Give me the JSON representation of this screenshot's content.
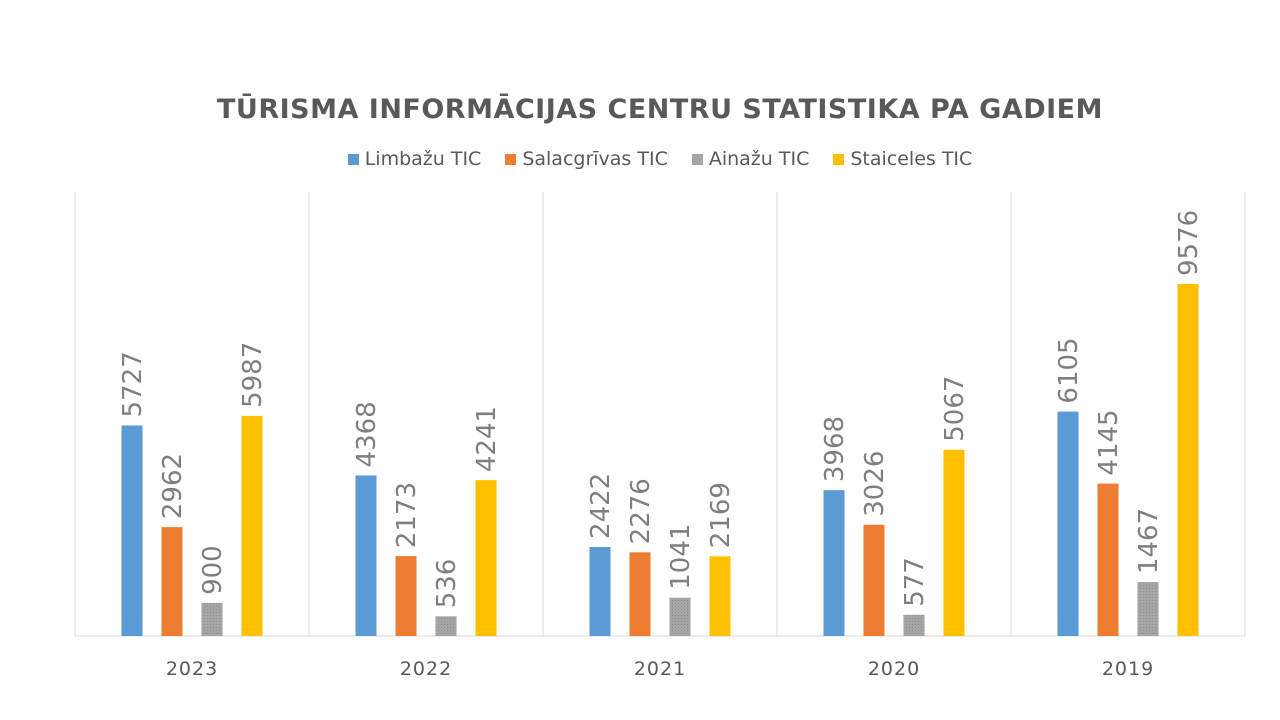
{
  "chart_data": {
    "type": "bar",
    "title": "TŪRISMA INFORMĀCIJAS CENTRU STATISTIKA PA GADIEM",
    "xlabel": "",
    "ylabel": "",
    "categories": [
      "2023",
      "2022",
      "2021",
      "2020",
      "2019"
    ],
    "series": [
      {
        "name": "Limbažu TIC",
        "color": "#5b9bd5",
        "values": [
          5727,
          4368,
          2422,
          3968,
          6105
        ]
      },
      {
        "name": "Salacgrīvas TIC",
        "color": "#ed7d31",
        "values": [
          2962,
          2173,
          2276,
          3026,
          4145
        ]
      },
      {
        "name": "Ainažu TIC",
        "color": "#a5a5a5",
        "values": [
          900,
          536,
          1041,
          577,
          1467
        ]
      },
      {
        "name": "Staiceles TIC",
        "color": "#ffc000",
        "values": [
          5987,
          4241,
          2169,
          5067,
          9576
        ]
      }
    ],
    "ylim": [
      0,
      12000
    ],
    "grid": "vertical category separators",
    "legend_position": "top",
    "data_labels": "rotated, above bars"
  }
}
